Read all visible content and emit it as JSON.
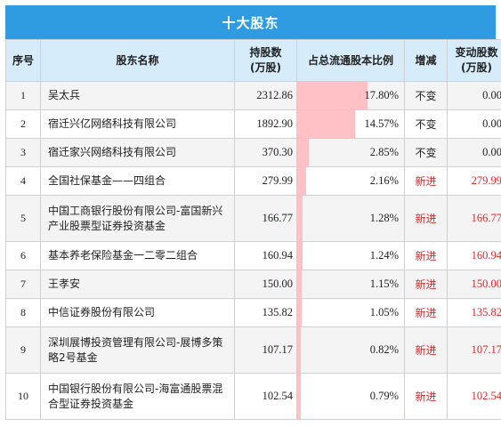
{
  "title": "十大股东",
  "headers": {
    "index": "序号",
    "name": "股东名称",
    "shares": "持股数\n(万股)",
    "ratio": "占总流通股本比例",
    "change": "增减",
    "delta": "变动股数\n(万股)"
  },
  "colors": {
    "header_bg": "#2f9be0",
    "bar": "#ffc1c5",
    "new": "#e0262a"
  },
  "rows": [
    {
      "index": "1",
      "name": "吴太兵",
      "shares": "2312.86",
      "ratio": "17.80%",
      "ratio_value": 17.8,
      "change": "不变",
      "delta": "0.00",
      "is_new": false
    },
    {
      "index": "2",
      "name": "宿迁兴亿网络科技有限公司",
      "shares": "1892.90",
      "ratio": "14.57%",
      "ratio_value": 14.57,
      "change": "不变",
      "delta": "0.00",
      "is_new": false
    },
    {
      "index": "3",
      "name": "宿迁家兴网络科技有限公司",
      "shares": "370.30",
      "ratio": "2.85%",
      "ratio_value": 2.85,
      "change": "不变",
      "delta": "0.00",
      "is_new": false
    },
    {
      "index": "4",
      "name": "全国社保基金——四组合",
      "shares": "279.99",
      "ratio": "2.16%",
      "ratio_value": 2.16,
      "change": "新进",
      "delta": "279.99",
      "is_new": true
    },
    {
      "index": "5",
      "name": "中国工商银行股份有限公司-富国新兴产业股票型证券投资基金",
      "shares": "166.77",
      "ratio": "1.28%",
      "ratio_value": 1.28,
      "change": "新进",
      "delta": "166.77",
      "is_new": true
    },
    {
      "index": "6",
      "name": "基本养老保险基金一二零二组合",
      "shares": "160.94",
      "ratio": "1.24%",
      "ratio_value": 1.24,
      "change": "新进",
      "delta": "160.94",
      "is_new": true
    },
    {
      "index": "7",
      "name": "王孝安",
      "shares": "150.00",
      "ratio": "1.15%",
      "ratio_value": 1.15,
      "change": "新进",
      "delta": "150.00",
      "is_new": true
    },
    {
      "index": "8",
      "name": "中信证券股份有限公司",
      "shares": "135.82",
      "ratio": "1.05%",
      "ratio_value": 1.05,
      "change": "新进",
      "delta": "135.82",
      "is_new": true
    },
    {
      "index": "9",
      "name": "深圳展博投资管理有限公司-展博多策略2号基金",
      "shares": "107.17",
      "ratio": "0.82%",
      "ratio_value": 0.82,
      "change": "新进",
      "delta": "107.17",
      "is_new": true
    },
    {
      "index": "10",
      "name": "中国银行股份有限公司-海富通股票混合型证券投资基金",
      "shares": "102.54",
      "ratio": "0.79%",
      "ratio_value": 0.79,
      "change": "新进",
      "delta": "102.54",
      "is_new": true
    }
  ]
}
